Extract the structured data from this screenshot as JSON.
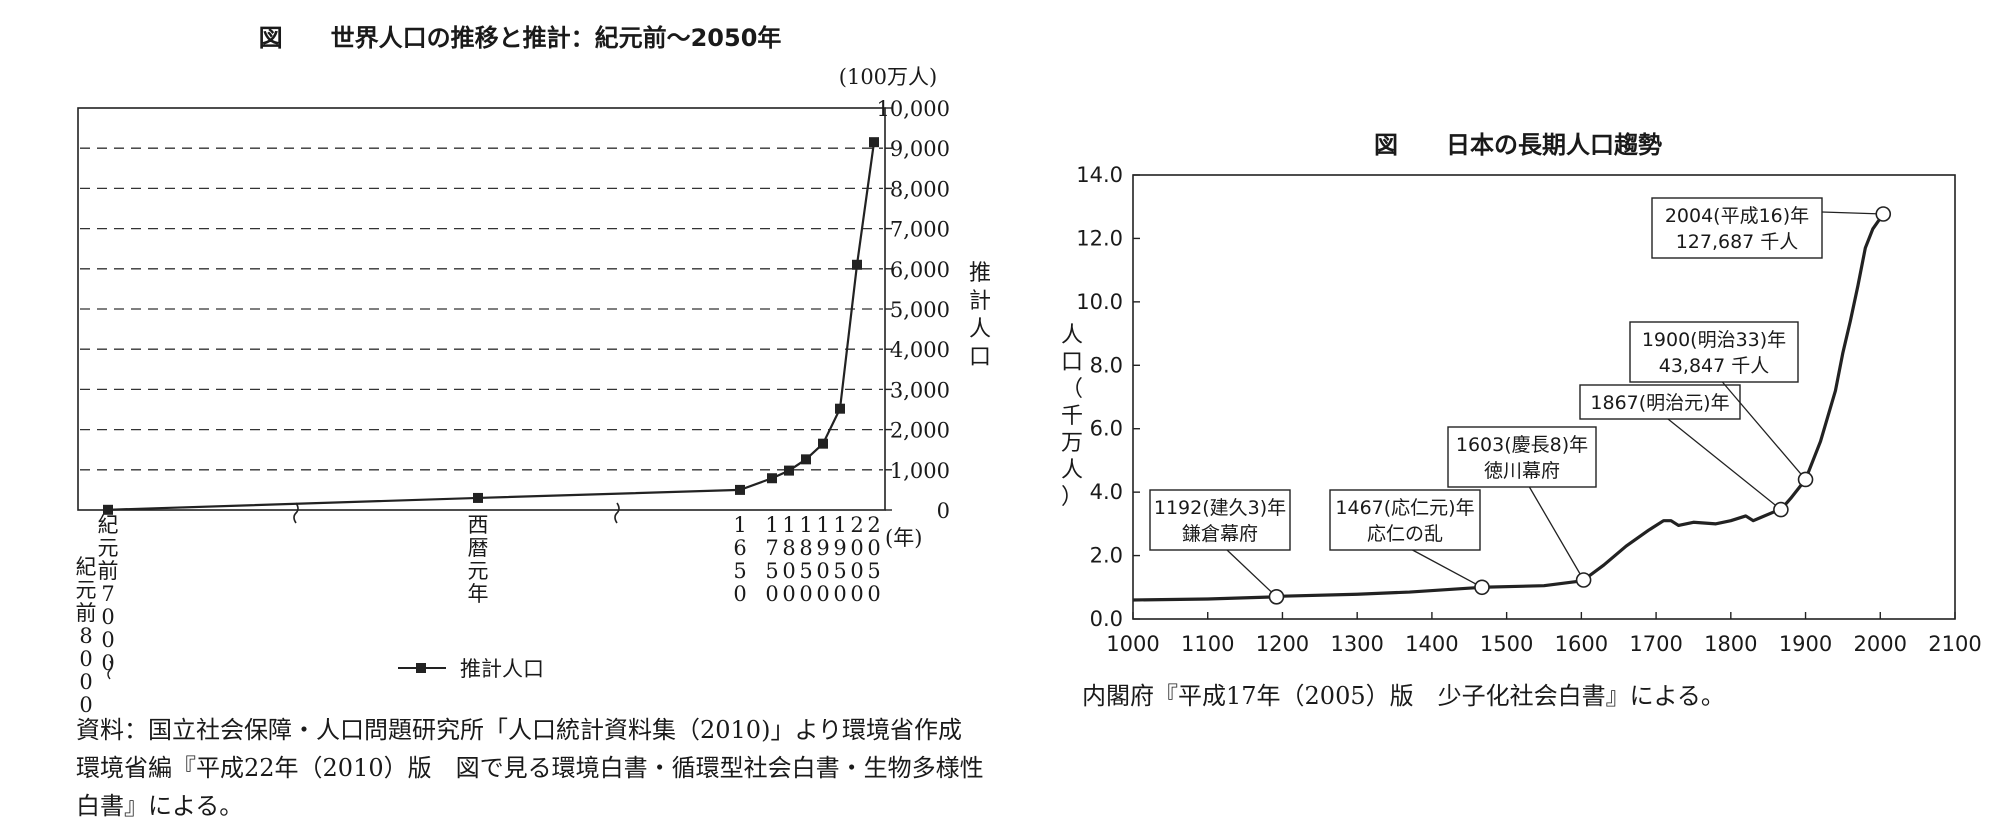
{
  "chart_data": [
    {
      "type": "line",
      "title": "図　　世界人口の推移と推計：紀元前～2050年",
      "unit_label": "(100万人)",
      "ylabel": "推計人口",
      "ylim": [
        0,
        10000
      ],
      "y_ticks": [
        "0",
        "1,000",
        "2,000",
        "3,000",
        "4,000",
        "5,000",
        "6,000",
        "7,000",
        "8,000",
        "9,000",
        "10,000"
      ],
      "x_unit": "(年)",
      "grid": "dashed horizontal",
      "x_labels": [
        {
          "x": "紀元前8000",
          "text": "紀元前8000"
        },
        {
          "x": "紀元前7000",
          "text": "紀元前7000"
        },
        {
          "x": "西暦元年",
          "text": "西暦元年"
        },
        {
          "x": 1650,
          "text": "1650"
        },
        {
          "x": 1750,
          "text": "1750"
        },
        {
          "x": 1800,
          "text": "1800"
        },
        {
          "x": 1850,
          "text": "1850"
        },
        {
          "x": 1900,
          "text": "1900"
        },
        {
          "x": 1950,
          "text": "1950"
        },
        {
          "x": 2000,
          "text": "2000"
        },
        {
          "x": 2050,
          "text": "2050"
        }
      ],
      "series": [
        {
          "name": "推計人口",
          "points": [
            {
              "x": "紀元前8000",
              "y": 5
            },
            {
              "x": "西暦元年",
              "y": 300
            },
            {
              "x": 1650,
              "y": 500
            },
            {
              "x": 1750,
              "y": 790
            },
            {
              "x": 1800,
              "y": 980
            },
            {
              "x": 1850,
              "y": 1260
            },
            {
              "x": 1900,
              "y": 1650
            },
            {
              "x": 1950,
              "y": 2520
            },
            {
              "x": 2000,
              "y": 6100
            },
            {
              "x": 2050,
              "y": 9150
            }
          ]
        }
      ],
      "legend": "bottom-center",
      "source_lines": [
        "資料：国立社会保障・人口問題研究所「人口統計資料集（2010)」より環境省作成",
        "環境省編『平成22年（2010）版　図で見る環境白書・循環型社会白書・生物多様性",
        "白書』による。"
      ]
    },
    {
      "type": "line",
      "title": "図　　日本の長期人口趨勢",
      "ylabel": "人口（千万人）",
      "xlim": [
        1000,
        2100
      ],
      "ylim": [
        0,
        14
      ],
      "x_ticks": [
        "1000",
        "1100",
        "1200",
        "1300",
        "1400",
        "1500",
        "1600",
        "1700",
        "1800",
        "1900",
        "2000",
        "2100"
      ],
      "y_ticks": [
        "0.0",
        "2.0",
        "4.0",
        "6.0",
        "8.0",
        "10.0",
        "12.0",
        "14.0"
      ],
      "series": [
        {
          "name": "",
          "points": [
            [
              1000,
              0.6
            ],
            [
              1100,
              0.63
            ],
            [
              1192,
              0.7
            ],
            [
              1200,
              0.72
            ],
            [
              1300,
              0.78
            ],
            [
              1370,
              0.85
            ],
            [
              1467,
              1.0
            ],
            [
              1550,
              1.05
            ],
            [
              1600,
              1.2
            ],
            [
              1603,
              1.23
            ],
            [
              1630,
              1.7
            ],
            [
              1660,
              2.3
            ],
            [
              1690,
              2.8
            ],
            [
              1710,
              3.1
            ],
            [
              1720,
              3.1
            ],
            [
              1730,
              2.95
            ],
            [
              1750,
              3.05
            ],
            [
              1780,
              3.0
            ],
            [
              1800,
              3.1
            ],
            [
              1820,
              3.25
            ],
            [
              1830,
              3.1
            ],
            [
              1840,
              3.2
            ],
            [
              1860,
              3.4
            ],
            [
              1867,
              3.45
            ],
            [
              1880,
              3.8
            ],
            [
              1900,
              4.4
            ],
            [
              1920,
              5.6
            ],
            [
              1940,
              7.2
            ],
            [
              1950,
              8.4
            ],
            [
              1960,
              9.4
            ],
            [
              1970,
              10.5
            ],
            [
              1980,
              11.7
            ],
            [
              1990,
              12.3
            ],
            [
              2004,
              12.77
            ]
          ]
        }
      ],
      "annotations": [
        {
          "x": 1192,
          "y": 0.7,
          "lines": [
            "1192(建久3)年",
            "鎌倉幕府"
          ]
        },
        {
          "x": 1467,
          "y": 1.0,
          "lines": [
            "1467(応仁元)年",
            "応仁の乱"
          ]
        },
        {
          "x": 1603,
          "y": 1.23,
          "lines": [
            "1603(慶長8)年",
            "徳川幕府"
          ]
        },
        {
          "x": 1867,
          "y": 3.45,
          "lines": [
            "1867(明治元)年"
          ]
        },
        {
          "x": 1900,
          "y": 4.4,
          "lines": [
            "1900(明治33)年",
            "43,847 千人"
          ]
        },
        {
          "x": 2004,
          "y": 12.77,
          "lines": [
            "2004(平成16)年",
            "127,687 千人"
          ]
        }
      ],
      "source_lines": [
        "内閣府『平成17年（2005）版　少子化社会白書』による。"
      ]
    }
  ]
}
